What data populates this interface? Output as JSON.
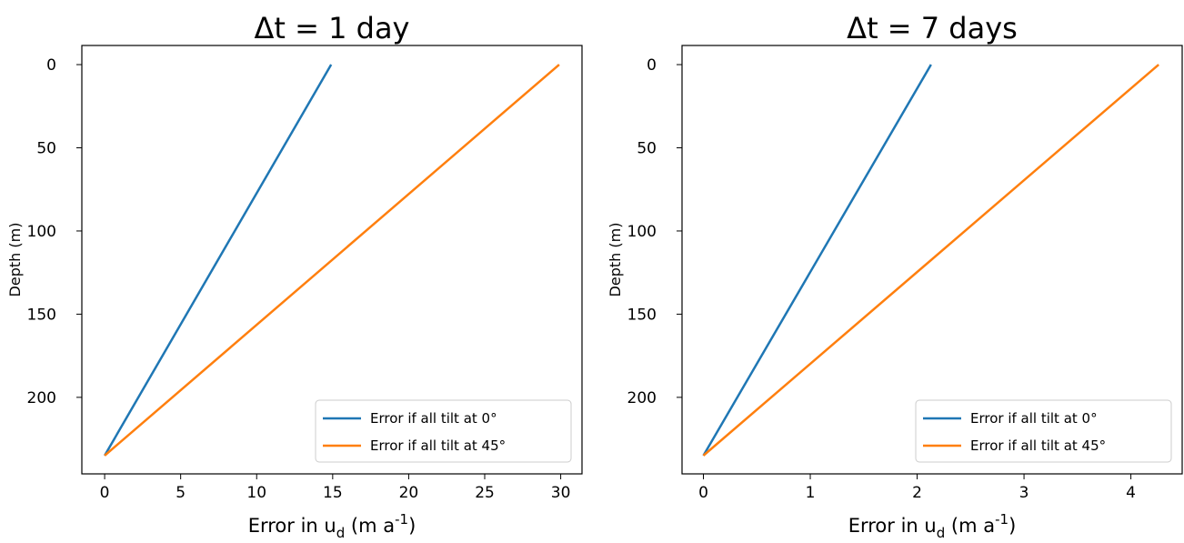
{
  "chart_data": [
    {
      "type": "line",
      "title": "Δt = 1 day",
      "ylabel": "Depth (m)",
      "xlabel": {
        "text": "Error in u",
        "sub": "d",
        "mid": " (m a",
        "sup": "-1",
        "end": ")"
      },
      "xlim": [
        -1.5,
        31.4
      ],
      "xticks": [
        0,
        5,
        10,
        15,
        20,
        25,
        30
      ],
      "ylim": [
        246,
        -11.5
      ],
      "yticks": [
        0,
        50,
        100,
        150,
        200
      ],
      "legend": "lower right",
      "series": [
        {
          "name": "Error if all tilt at 0°",
          "color": "#1f77b4",
          "x": [
            0,
            14.9
          ],
          "values": [
            235,
            0
          ]
        },
        {
          "name": "Error if all tilt at 45°",
          "color": "#ff7f0e",
          "x": [
            0,
            29.9
          ],
          "values": [
            235,
            0
          ]
        }
      ]
    },
    {
      "type": "line",
      "title": "Δt = 7 days",
      "ylabel": "Depth (m)",
      "xlabel": {
        "text": "Error in u",
        "sub": "d",
        "mid": " (m a",
        "sup": "-1",
        "end": ")"
      },
      "xlim": [
        -0.2,
        4.48
      ],
      "xticks": [
        0,
        1,
        2,
        3,
        4
      ],
      "ylim": [
        246,
        -11.5
      ],
      "yticks": [
        0,
        50,
        100,
        150,
        200
      ],
      "legend": "lower right",
      "series": [
        {
          "name": "Error if all tilt at 0°",
          "color": "#1f77b4",
          "x": [
            0,
            2.13
          ],
          "values": [
            235,
            0
          ]
        },
        {
          "name": "Error if all tilt at 45°",
          "color": "#ff7f0e",
          "x": [
            0,
            4.26
          ],
          "values": [
            235,
            0
          ]
        }
      ]
    }
  ]
}
